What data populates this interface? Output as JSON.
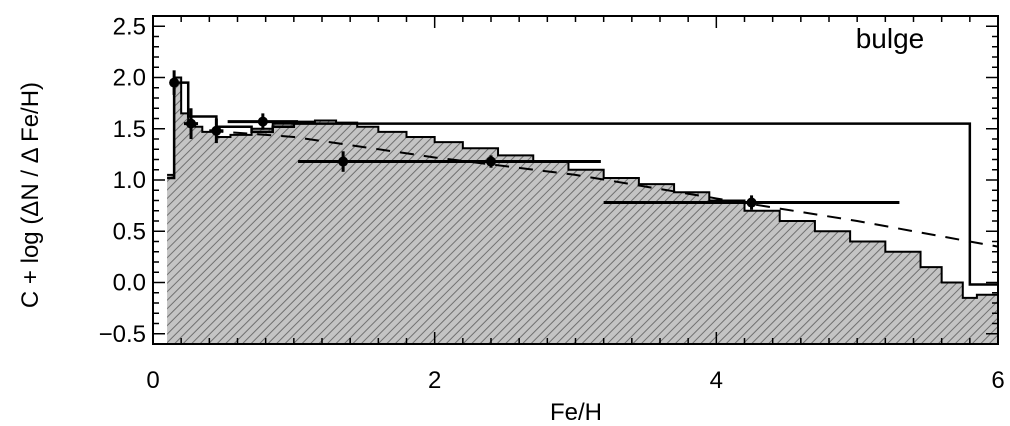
{
  "chart_data": {
    "type": "line",
    "title": "",
    "annotation": "bulge",
    "xlabel": "Fe/H",
    "ylabel": "C + log (ΔN / Δ Fe/H)",
    "xlim": [
      0,
      6
    ],
    "ylim": [
      -0.6,
      2.6
    ],
    "x_ticks": [
      0,
      2,
      4,
      6
    ],
    "x_tick_labels": [
      "0",
      "2",
      "4",
      "6"
    ],
    "y_ticks": [
      -0.5,
      0.0,
      0.5,
      1.0,
      1.5,
      2.0,
      2.5
    ],
    "y_tick_labels": [
      "−0.5",
      "0.0",
      "0.5",
      "1.0",
      "1.5",
      "2.0",
      "2.5"
    ],
    "grid": false,
    "colors": {
      "fill": "#b8b8b8",
      "hatch": "#7a7a7a",
      "line": "#000000"
    },
    "model_histogram": {
      "style": "hatched-step-fill",
      "x": [
        0.1,
        0.15,
        0.2,
        0.25,
        0.3,
        0.35,
        0.45,
        0.55,
        0.7,
        0.85,
        1.0,
        1.15,
        1.3,
        1.45,
        1.6,
        1.8,
        2.0,
        2.2,
        2.45,
        2.7,
        2.95,
        3.2,
        3.45,
        3.7,
        3.95,
        4.2,
        4.45,
        4.7,
        4.95,
        5.2,
        5.45,
        5.6,
        5.75,
        5.85,
        6.0
      ],
      "y": [
        1.05,
        2.0,
        1.65,
        1.55,
        1.52,
        1.47,
        1.42,
        1.44,
        1.5,
        1.55,
        1.57,
        1.58,
        1.56,
        1.52,
        1.47,
        1.42,
        1.37,
        1.31,
        1.24,
        1.18,
        1.1,
        1.02,
        0.96,
        0.88,
        0.8,
        0.7,
        0.6,
        0.5,
        0.4,
        0.3,
        0.15,
        0.0,
        -0.15,
        -0.12,
        -0.1
      ]
    },
    "model_step_line": {
      "style": "solid-step",
      "x": [
        0.1,
        0.15,
        0.25,
        0.35,
        0.45,
        0.55,
        0.7,
        0.85,
        1.0,
        5.8,
        6.0
      ],
      "y": [
        1.02,
        1.95,
        1.62,
        1.62,
        1.52,
        1.52,
        1.47,
        1.52,
        1.55,
        -0.02,
        -0.02
      ]
    },
    "dashed_line": {
      "style": "dashed",
      "x": [
        0.4,
        1.0,
        2.0,
        3.0,
        4.0,
        5.0,
        6.0
      ],
      "y": [
        1.48,
        1.42,
        1.22,
        1.05,
        0.82,
        0.6,
        0.35
      ]
    },
    "observed_points": [
      {
        "x": 0.15,
        "y": 1.95,
        "xerr": 0.03,
        "yerr": 0.12
      },
      {
        "x": 0.27,
        "y": 1.55,
        "xerr": 0.05,
        "yerr": 0.15
      },
      {
        "x": 0.45,
        "y": 1.48,
        "xerr": 0.05,
        "yerr": 0.12
      },
      {
        "x": 0.78,
        "y": 1.57,
        "xerr": 0.25,
        "yerr": 0.08
      },
      {
        "x": 1.35,
        "y": 1.18,
        "xerr": 0.32,
        "yerr": 0.1
      },
      {
        "x": 2.4,
        "y": 1.18,
        "xerr": 0.78,
        "yerr": 0.06
      },
      {
        "x": 4.25,
        "y": 0.78,
        "xerr": 1.05,
        "yerr": 0.07
      }
    ]
  }
}
